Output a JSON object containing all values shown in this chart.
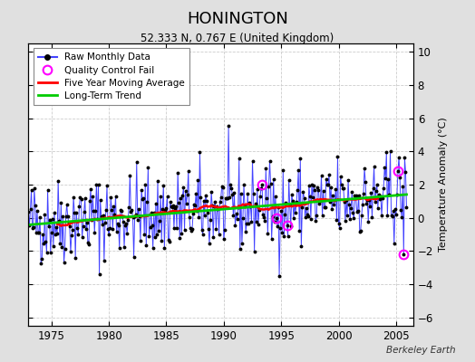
{
  "title": "HONINGTON",
  "subtitle": "52.333 N, 0.767 E (United Kingdom)",
  "ylabel": "Temperature Anomaly (°C)",
  "watermark": "Berkeley Earth",
  "xlim": [
    1973.0,
    2006.5
  ],
  "ylim": [
    -6.5,
    10.5
  ],
  "yticks": [
    -6,
    -4,
    -2,
    0,
    2,
    4,
    6,
    8,
    10
  ],
  "xticks": [
    1975,
    1980,
    1985,
    1990,
    1995,
    2000,
    2005
  ],
  "bg_color": "#e0e0e0",
  "plot_bg_color": "#ffffff",
  "raw_color": "#4444ff",
  "raw_marker_color": "#000000",
  "qc_fail_color": "#ff00ff",
  "moving_avg_color": "#ff0000",
  "trend_color": "#00cc00",
  "seed": 42
}
